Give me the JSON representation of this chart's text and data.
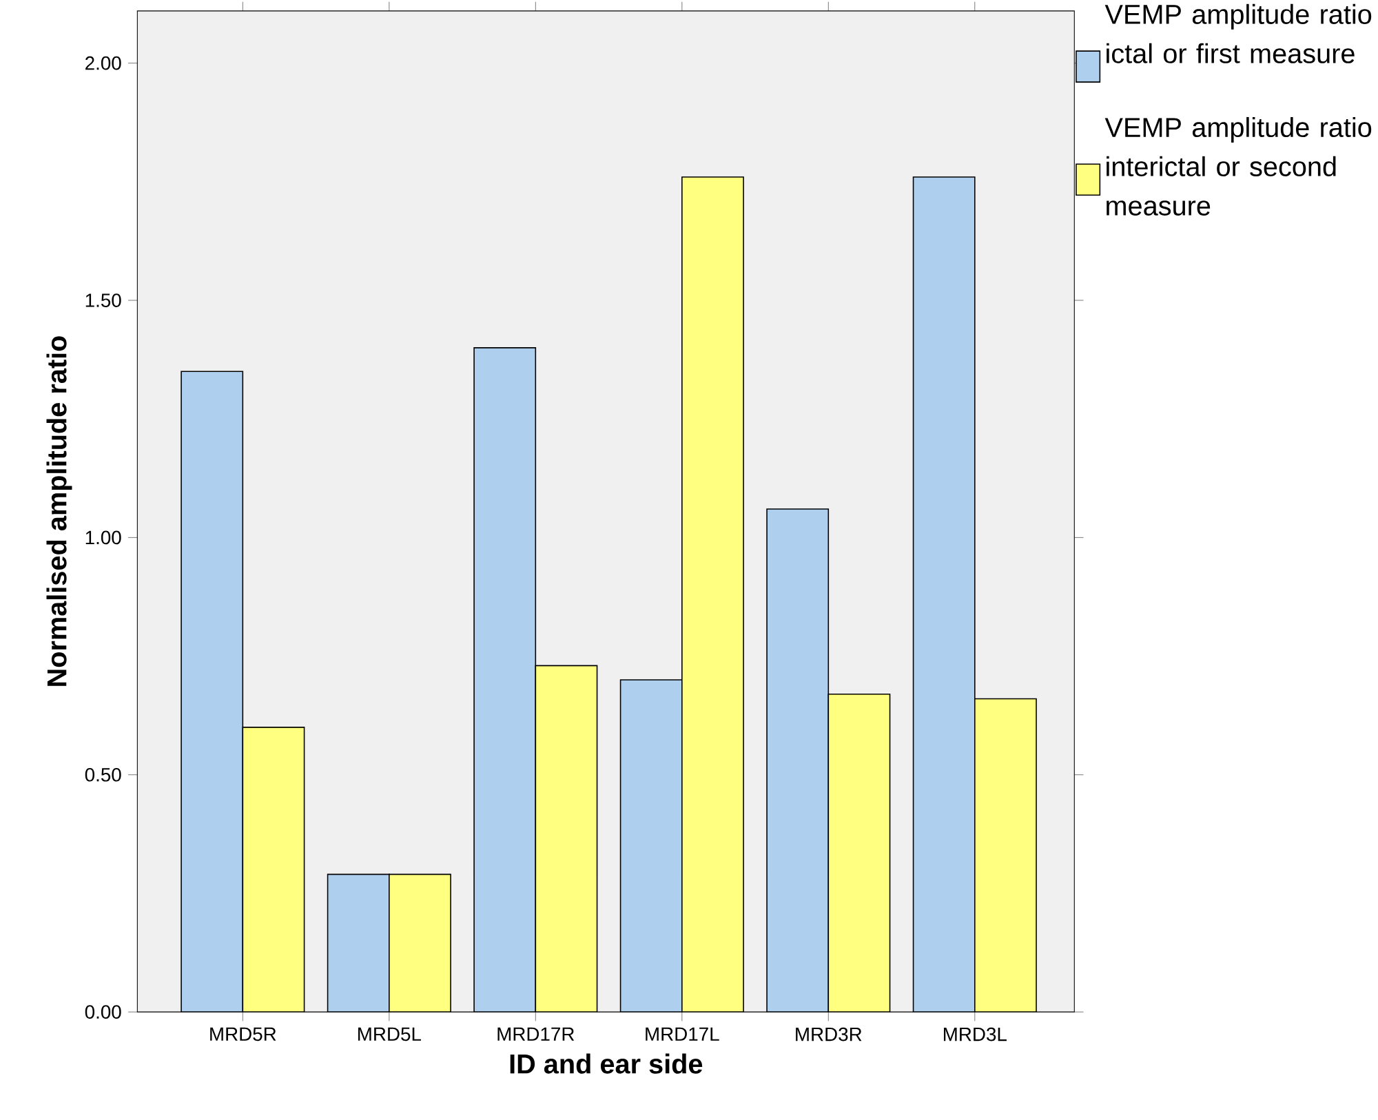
{
  "chart_data": {
    "type": "bar",
    "xlabel": "ID and ear side",
    "ylabel": "Normalised amplitude ratio",
    "categories": [
      "MRD5R",
      "MRD5L",
      "MRD17R",
      "MRD17L",
      "MRD3R",
      "MRD3L"
    ],
    "series": [
      {
        "name": "VEMP amplitude ratio ictal or first measure",
        "color": "#aecfee",
        "values": [
          1.35,
          0.29,
          1.4,
          0.7,
          1.06,
          1.76
        ]
      },
      {
        "name": "VEMP amplitude ratio interictal or second measure",
        "color": "#ffff80",
        "values": [
          0.6,
          0.29,
          0.73,
          1.76,
          0.67,
          0.66
        ]
      }
    ],
    "ylim": [
      0,
      2.11
    ],
    "yticks": [
      {
        "value": 0,
        "label": "0.00"
      },
      {
        "value": 0.5,
        "label": "0.50"
      },
      {
        "value": 1,
        "label": "1.00"
      },
      {
        "value": 1.5,
        "label": "1.50"
      },
      {
        "value": 2,
        "label": "2.00"
      }
    ],
    "grid": false,
    "legend": "right"
  }
}
